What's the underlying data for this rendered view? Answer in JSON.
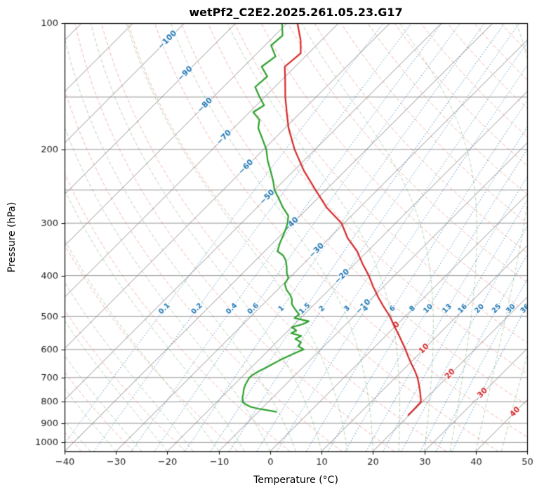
{
  "title": "wetPf2_C2E2.2025.261.05.23.G17",
  "axes": {
    "xlabel": "Temperature (°C)",
    "ylabel": "Pressure (hPa)"
  },
  "chart_data": {
    "type": "line",
    "variant": "skew-t-log-p-sounding",
    "title": "wetPf2_C2E2.2025.261.05.23.G17",
    "xlabel": "Temperature (°C)",
    "ylabel": "Pressure (hPa)",
    "xlim": [
      -40,
      50
    ],
    "pressure_lim": [
      100,
      1050
    ],
    "x_ticks": [
      -40,
      -30,
      -20,
      -10,
      0,
      10,
      20,
      30,
      40,
      50
    ],
    "y_ticks": [
      100,
      200,
      300,
      400,
      500,
      600,
      700,
      800,
      900,
      1000
    ],
    "grid_pressures": [
      100,
      150,
      200,
      250,
      300,
      400,
      500,
      600,
      700,
      800,
      900,
      1000
    ],
    "isotherms": {
      "start": -120,
      "end": 50,
      "step": 10
    },
    "isotherm_labels": [
      {
        "value": -100,
        "y": 57,
        "color": "blue"
      },
      {
        "value": -90,
        "y": 105,
        "color": "blue"
      },
      {
        "value": -80,
        "y": 150,
        "color": "blue"
      },
      {
        "value": -70,
        "y": 196,
        "color": "blue"
      },
      {
        "value": -60,
        "y": 238,
        "color": "blue"
      },
      {
        "value": -50,
        "y": 281,
        "color": "blue"
      },
      {
        "value": -40,
        "y": 320,
        "color": "blue"
      },
      {
        "value": -30,
        "y": 357,
        "color": "blue"
      },
      {
        "value": -20,
        "y": 394,
        "color": "blue"
      },
      {
        "value": -10,
        "y": 437,
        "color": "blue"
      },
      {
        "value": 0,
        "y": 463,
        "color": "red"
      },
      {
        "value": 10,
        "y": 497,
        "color": "red"
      },
      {
        "value": 20,
        "y": 533,
        "color": "red"
      },
      {
        "value": 30,
        "y": 560,
        "color": "red"
      },
      {
        "value": 40,
        "y": 587,
        "color": "red"
      }
    ],
    "dry_adiabats": {
      "theta_start": -40,
      "theta_end": 180,
      "step": 10
    },
    "moist_adiabats": {
      "t_start": -40,
      "t_end": 50,
      "step": 5
    },
    "mixing_ratios": {
      "values": [
        0.1,
        0.2,
        0.4,
        0.6,
        1,
        1.5,
        2,
        3,
        4,
        6,
        8,
        10,
        13,
        16,
        20,
        25,
        30,
        36
      ],
      "label_pressure": 480
    },
    "series": [
      {
        "name": "temperature",
        "color": "#d62728",
        "points": [
          [
            100,
            -78
          ],
          [
            110,
            -74
          ],
          [
            118,
            -71.5
          ],
          [
            127,
            -72
          ],
          [
            136,
            -69.5
          ],
          [
            150,
            -66
          ],
          [
            165,
            -62.3
          ],
          [
            178,
            -59.3
          ],
          [
            200,
            -54
          ],
          [
            225,
            -48
          ],
          [
            250,
            -42
          ],
          [
            275,
            -36.5
          ],
          [
            300,
            -30.5
          ],
          [
            325,
            -26.5
          ],
          [
            350,
            -22
          ],
          [
            375,
            -18.5
          ],
          [
            400,
            -15
          ],
          [
            425,
            -12
          ],
          [
            450,
            -9
          ],
          [
            475,
            -6
          ],
          [
            500,
            -3
          ],
          [
            525,
            -0.5
          ],
          [
            550,
            2
          ],
          [
            575,
            4.3
          ],
          [
            600,
            6.5
          ],
          [
            625,
            8.5
          ],
          [
            650,
            10.5
          ],
          [
            675,
            12.5
          ],
          [
            700,
            14.3
          ],
          [
            725,
            15.8
          ],
          [
            750,
            17.2
          ],
          [
            775,
            18.5
          ],
          [
            800,
            19.7
          ],
          [
            830,
            19.8
          ],
          [
            860,
            19.8
          ]
        ]
      },
      {
        "name": "dewpoint",
        "color": "#2ca02c",
        "points": [
          [
            100,
            -81
          ],
          [
            107,
            -78.5
          ],
          [
            113,
            -78.8
          ],
          [
            120,
            -75.8
          ],
          [
            127,
            -76.5
          ],
          [
            134,
            -73.5
          ],
          [
            142,
            -73.8
          ],
          [
            150,
            -71
          ],
          [
            157,
            -68.5
          ],
          [
            163,
            -69.3
          ],
          [
            170,
            -66.6
          ],
          [
            178,
            -65.2
          ],
          [
            188,
            -62.5
          ],
          [
            200,
            -59.5
          ],
          [
            213,
            -57
          ],
          [
            225,
            -54.5
          ],
          [
            238,
            -52
          ],
          [
            250,
            -50
          ],
          [
            263,
            -47.3
          ],
          [
            275,
            -45
          ],
          [
            288,
            -42.3
          ],
          [
            300,
            -41
          ],
          [
            310,
            -40.2
          ],
          [
            322,
            -39.4
          ],
          [
            335,
            -38.6
          ],
          [
            350,
            -37.5
          ],
          [
            358,
            -35.6
          ],
          [
            368,
            -34.1
          ],
          [
            382,
            -32.6
          ],
          [
            395,
            -31.4
          ],
          [
            405,
            -30.2
          ],
          [
            418,
            -29.8
          ],
          [
            432,
            -28.3
          ],
          [
            445,
            -26.5
          ],
          [
            455,
            -25.4
          ],
          [
            468,
            -24.4
          ],
          [
            482,
            -22.7
          ],
          [
            495,
            -21
          ],
          [
            505,
            -21.2
          ],
          [
            514,
            -17.8
          ],
          [
            522,
            -18.4
          ],
          [
            531,
            -19.9
          ],
          [
            541,
            -18.4
          ],
          [
            549,
            -18.9
          ],
          [
            557,
            -16.4
          ],
          [
            566,
            -17
          ],
          [
            577,
            -15.2
          ],
          [
            589,
            -15
          ],
          [
            600,
            -13.3
          ],
          [
            611,
            -14.2
          ],
          [
            624,
            -15.1
          ],
          [
            637,
            -15.9
          ],
          [
            650,
            -16.5
          ],
          [
            663,
            -17.1
          ],
          [
            676,
            -17.8
          ],
          [
            690,
            -18.3
          ],
          [
            700,
            -18.4
          ],
          [
            714,
            -18.1
          ],
          [
            728,
            -17.8
          ],
          [
            741,
            -17.4
          ],
          [
            752,
            -17
          ],
          [
            766,
            -16.4
          ],
          [
            778,
            -16
          ],
          [
            791,
            -15.4
          ],
          [
            801,
            -14.9
          ],
          [
            812,
            -13.8
          ],
          [
            822,
            -12.5
          ],
          [
            830,
            -10.8
          ],
          [
            837,
            -8.8
          ],
          [
            845,
            -6.5
          ]
        ]
      }
    ],
    "colors": {
      "isotherm": "rgba(128,128,128,0.85)",
      "grid": "rgba(128,128,128,0.85)",
      "dry_adiabat": "rgba(225,95,80,0.45)",
      "moist_adiabat": "rgba(76,153,76,0.40)",
      "mixing_ratio": "rgba(49,119,181,0.90)",
      "label_blue": "#1f77b4",
      "label_red": "#d62728",
      "frame": "#000000",
      "tick_text": "#1a1a1a"
    }
  }
}
